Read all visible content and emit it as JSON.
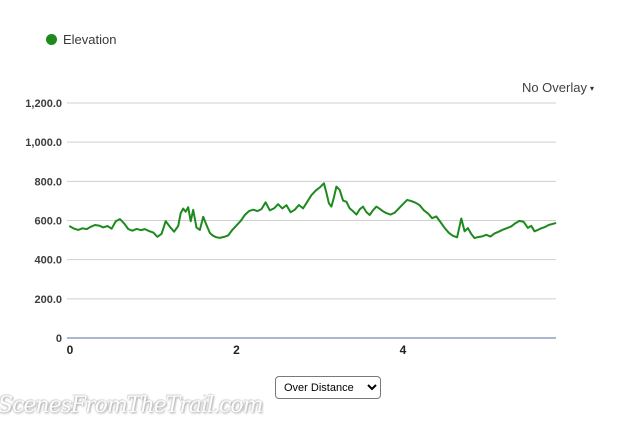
{
  "legend": {
    "label": "Elevation",
    "dot_color": "#1e8a1e"
  },
  "overlay_dropdown": {
    "label": "No Overlay",
    "caret": "▾"
  },
  "controls": {
    "mode_selected": "Over Distance"
  },
  "watermark": "ScenesFromTheTrail.com",
  "chart_data": {
    "type": "line",
    "title": "",
    "xlabel": "",
    "ylabel": "",
    "legend_entries": [
      "Elevation"
    ],
    "legend_position": "top-left",
    "grid": true,
    "line_color": "#1e8a1e",
    "grid_color": "#cfcfcf",
    "baseline_color": "#a9b8ce",
    "ylim": [
      0,
      1200
    ],
    "xlim": [
      0,
      5.84
    ],
    "y_ticks": [
      {
        "label": "1,200.0",
        "value": 1200
      },
      {
        "label": "1,000.0",
        "value": 1000
      },
      {
        "label": "800.0",
        "value": 800
      },
      {
        "label": "600.0",
        "value": 600
      },
      {
        "label": "400.0",
        "value": 400
      },
      {
        "label": "200.0",
        "value": 200
      },
      {
        "label": "0",
        "value": 0
      }
    ],
    "x_ticks": [
      {
        "label": "0",
        "value": 0
      },
      {
        "label": "2",
        "value": 2
      },
      {
        "label": "4",
        "value": 4
      }
    ],
    "series": [
      {
        "name": "Elevation",
        "points": [
          [
            0,
            570
          ],
          [
            0.05,
            558
          ],
          [
            0.1,
            552
          ],
          [
            0.15,
            560
          ],
          [
            0.2,
            556
          ],
          [
            0.25,
            568
          ],
          [
            0.3,
            577
          ],
          [
            0.35,
            574
          ],
          [
            0.4,
            565
          ],
          [
            0.45,
            572
          ],
          [
            0.5,
            558
          ],
          [
            0.55,
            596
          ],
          [
            0.6,
            607
          ],
          [
            0.65,
            585
          ],
          [
            0.7,
            556
          ],
          [
            0.75,
            548
          ],
          [
            0.8,
            557
          ],
          [
            0.85,
            551
          ],
          [
            0.9,
            556
          ],
          [
            0.95,
            546
          ],
          [
            1,
            538
          ],
          [
            1.05,
            517
          ],
          [
            1.1,
            532
          ],
          [
            1.15,
            597
          ],
          [
            1.2,
            568
          ],
          [
            1.25,
            543
          ],
          [
            1.3,
            572
          ],
          [
            1.33,
            638
          ],
          [
            1.36,
            661
          ],
          [
            1.39,
            645
          ],
          [
            1.42,
            668
          ],
          [
            1.45,
            596
          ],
          [
            1.48,
            654
          ],
          [
            1.52,
            564
          ],
          [
            1.56,
            552
          ],
          [
            1.6,
            619
          ],
          [
            1.64,
            577
          ],
          [
            1.68,
            536
          ],
          [
            1.72,
            522
          ],
          [
            1.76,
            514
          ],
          [
            1.8,
            511
          ],
          [
            1.85,
            516
          ],
          [
            1.9,
            524
          ],
          [
            1.95,
            552
          ],
          [
            2,
            575
          ],
          [
            2.05,
            598
          ],
          [
            2.1,
            628
          ],
          [
            2.15,
            648
          ],
          [
            2.2,
            655
          ],
          [
            2.25,
            648
          ],
          [
            2.3,
            658
          ],
          [
            2.35,
            693
          ],
          [
            2.4,
            652
          ],
          [
            2.45,
            662
          ],
          [
            2.5,
            683
          ],
          [
            2.55,
            662
          ],
          [
            2.6,
            678
          ],
          [
            2.65,
            642
          ],
          [
            2.7,
            655
          ],
          [
            2.75,
            679
          ],
          [
            2.8,
            662
          ],
          [
            2.85,
            696
          ],
          [
            2.9,
            729
          ],
          [
            2.95,
            752
          ],
          [
            3,
            769
          ],
          [
            3.05,
            790
          ],
          [
            3.08,
            742
          ],
          [
            3.11,
            688
          ],
          [
            3.14,
            671
          ],
          [
            3.17,
            718
          ],
          [
            3.2,
            773
          ],
          [
            3.24,
            756
          ],
          [
            3.28,
            701
          ],
          [
            3.32,
            696
          ],
          [
            3.36,
            662
          ],
          [
            3.4,
            647
          ],
          [
            3.44,
            630
          ],
          [
            3.48,
            657
          ],
          [
            3.52,
            671
          ],
          [
            3.56,
            643
          ],
          [
            3.6,
            628
          ],
          [
            3.64,
            652
          ],
          [
            3.68,
            671
          ],
          [
            3.72,
            660
          ],
          [
            3.76,
            647
          ],
          [
            3.8,
            638
          ],
          [
            3.85,
            630
          ],
          [
            3.9,
            640
          ],
          [
            3.95,
            662
          ],
          [
            4,
            684
          ],
          [
            4.05,
            705
          ],
          [
            4.1,
            699
          ],
          [
            4.15,
            691
          ],
          [
            4.2,
            678
          ],
          [
            4.25,
            652
          ],
          [
            4.3,
            636
          ],
          [
            4.35,
            612
          ],
          [
            4.4,
            621
          ],
          [
            4.45,
            592
          ],
          [
            4.5,
            562
          ],
          [
            4.55,
            537
          ],
          [
            4.6,
            522
          ],
          [
            4.65,
            514
          ],
          [
            4.7,
            610
          ],
          [
            4.74,
            545
          ],
          [
            4.78,
            561
          ],
          [
            4.82,
            531
          ],
          [
            4.86,
            510
          ],
          [
            4.9,
            515
          ],
          [
            4.95,
            519
          ],
          [
            5,
            527
          ],
          [
            5.05,
            518
          ],
          [
            5.1,
            534
          ],
          [
            5.15,
            543
          ],
          [
            5.2,
            553
          ],
          [
            5.25,
            561
          ],
          [
            5.3,
            570
          ],
          [
            5.35,
            586
          ],
          [
            5.4,
            598
          ],
          [
            5.45,
            593
          ],
          [
            5.5,
            562
          ],
          [
            5.54,
            573
          ],
          [
            5.58,
            545
          ],
          [
            5.62,
            552
          ],
          [
            5.66,
            560
          ],
          [
            5.7,
            566
          ],
          [
            5.75,
            577
          ],
          [
            5.83,
            586
          ]
        ]
      }
    ]
  }
}
